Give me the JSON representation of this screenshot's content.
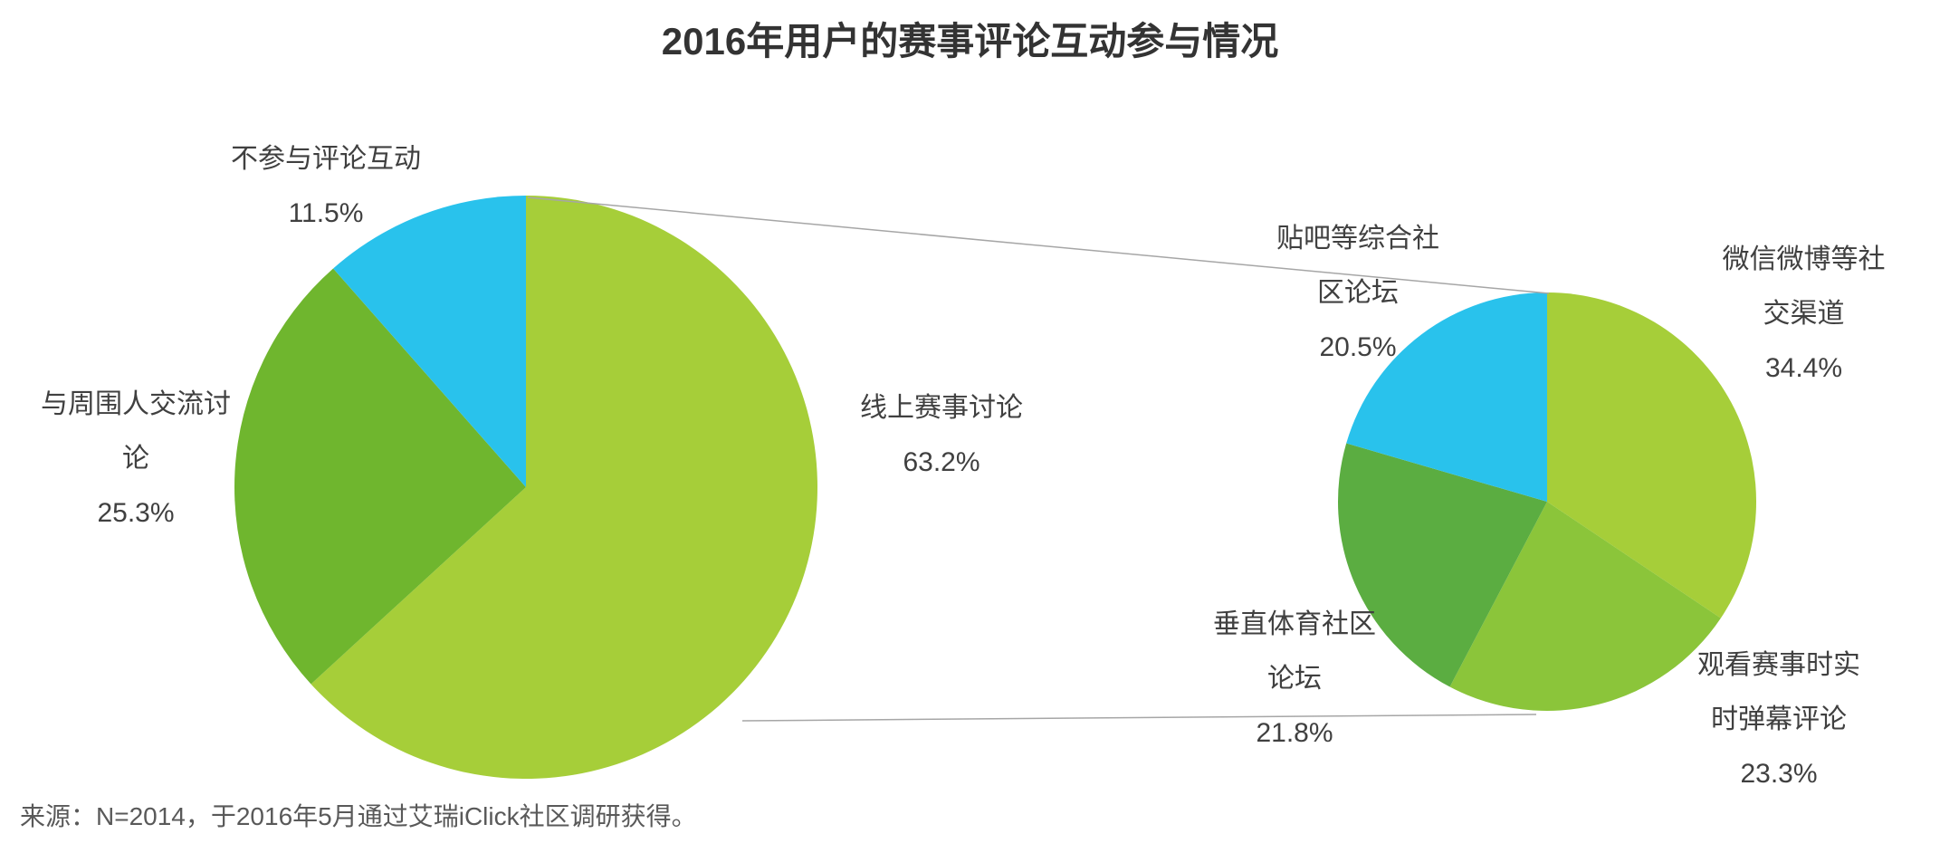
{
  "title": "2016年用户的赛事评论互动参与情况",
  "source": "来源：N=2014，于2016年5月通过艾瑞iClick社区调研获得。",
  "colors": {
    "yellow_green": "#a6ce39",
    "green": "#6fb62e",
    "cyan": "#29c2ec",
    "mid_green": "#8bc53a",
    "dark_green": "#5bad41",
    "connector_gray": "#a6a6a6",
    "title_text": "#333333",
    "label_text": "#404040",
    "source_text": "#595959"
  },
  "chart_data": [
    {
      "type": "pie",
      "id": "overall-participation",
      "start_angle_deg": -90,
      "direction": "clockwise",
      "slices": [
        {
          "label": "线上赛事讨论",
          "value": 63.2,
          "display": "63.2%",
          "color": "#a6ce39",
          "label_lines": [
            "线上赛事讨论",
            "63.2%"
          ]
        },
        {
          "label": "与周围人交流讨论",
          "value": 25.3,
          "display": "25.3%",
          "color": "#6fb62e",
          "label_lines": [
            "与周围人交流讨",
            "论",
            "25.3%"
          ]
        },
        {
          "label": "不参与评论互动",
          "value": 11.5,
          "display": "11.5%",
          "color": "#29c2ec",
          "label_lines": [
            "不参与评论互动",
            "11.5%"
          ]
        }
      ]
    },
    {
      "type": "pie",
      "id": "online-discussion-breakdown",
      "start_angle_deg": -90,
      "direction": "clockwise",
      "slices": [
        {
          "label": "微信微博等社交渠道",
          "value": 34.4,
          "display": "34.4%",
          "color": "#a6ce39",
          "label_lines": [
            "微信微博等社",
            "交渠道",
            "34.4%"
          ]
        },
        {
          "label": "观看赛事时实时弹幕评论",
          "value": 23.3,
          "display": "23.3%",
          "color": "#8bc53a",
          "label_lines": [
            "观看赛事时实",
            "时弹幕评论",
            "23.3%"
          ]
        },
        {
          "label": "垂直体育社区论坛",
          "value": 21.8,
          "display": "21.8%",
          "color": "#5bad41",
          "label_lines": [
            "垂直体育社区",
            "论坛",
            "21.8%"
          ]
        },
        {
          "label": "贴吧等综合社区论坛",
          "value": 20.5,
          "display": "20.5%",
          "color": "#29c2ec",
          "label_lines": [
            "贴吧等综合社",
            "区论坛",
            "20.5%"
          ]
        }
      ]
    }
  ]
}
